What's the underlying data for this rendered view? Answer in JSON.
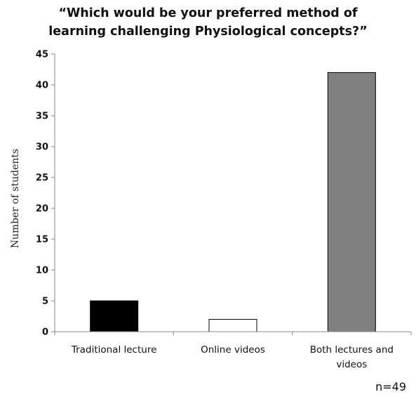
{
  "chart_data": {
    "type": "bar",
    "title_lines": [
      "“Which would be your preferred method of",
      "learning challenging Physiological concepts?”"
    ],
    "ylabel": "Number of students",
    "categories": [
      [
        "Traditional lecture"
      ],
      [
        "Online videos"
      ],
      [
        "Both lectures and",
        "videos"
      ]
    ],
    "values": [
      5,
      2,
      42
    ],
    "bar_colors": [
      "#000000",
      "#ffffff",
      "#808080"
    ],
    "ylim": [
      0,
      45
    ],
    "yticks": [
      0,
      5,
      10,
      15,
      20,
      25,
      30,
      35,
      40,
      45
    ],
    "grid": false,
    "note": "n=49"
  }
}
